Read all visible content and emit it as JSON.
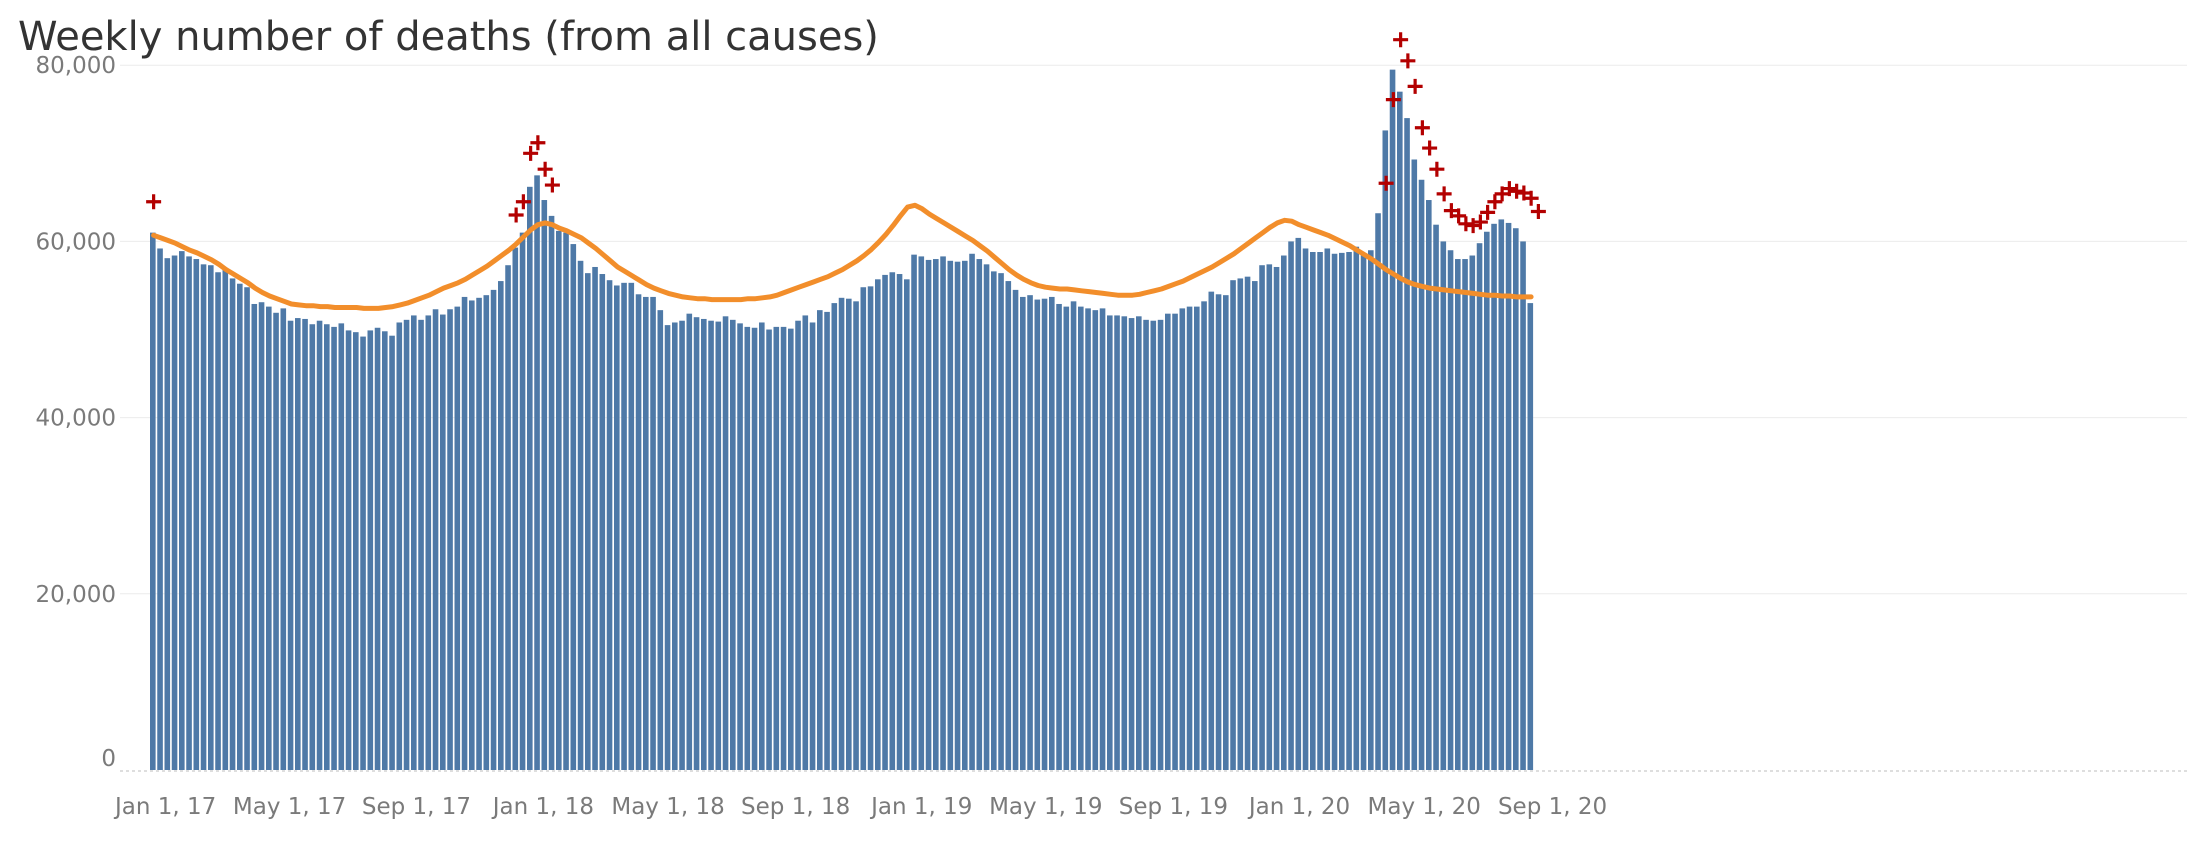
{
  "title": "Weekly number of deaths (from all causes)",
  "chart_data": {
    "type": "bar",
    "title": "Weekly number of deaths (from all causes)",
    "xlabel": "",
    "ylabel": "",
    "ylim": [
      0,
      84000
    ],
    "y_ticks": [
      0,
      20000,
      40000,
      60000,
      80000
    ],
    "y_tick_labels": [
      "0",
      "20,000",
      "40,000",
      "60,000",
      "80,000"
    ],
    "x_tick_labels": [
      "Jan 1, 17",
      "May 1, 17",
      "Sep 1, 17",
      "Jan 1, 18",
      "May 1, 18",
      "Sep 1, 18",
      "Jan 1, 19",
      "May 1, 19",
      "Sep 1, 19",
      "Jan 1, 20",
      "May 1, 20",
      "Sep 1, 20"
    ],
    "x_tick_weeks": [
      0.0,
      17.1,
      34.6,
      52.1,
      69.3,
      86.9,
      104.3,
      121.4,
      139.0,
      156.4,
      173.6,
      191.3
    ],
    "grid": true,
    "colors": {
      "bars": "#4e79a7",
      "expected_line": "#f28e2b",
      "excess_marker": "#b30000"
    },
    "series": [
      {
        "name": "",
        "type": "bar",
        "values": [
          61000,
          59200,
          58100,
          58400,
          58900,
          58300,
          58000,
          57400,
          57300,
          56500,
          57000,
          55800,
          55200,
          54800,
          52900,
          53100,
          52600,
          51900,
          52400,
          51000,
          51300,
          51200,
          50600,
          51000,
          50600,
          50300,
          50700,
          49900,
          49700,
          49200,
          49900,
          50200,
          49800,
          49300,
          50800,
          51100,
          51600,
          51100,
          51600,
          52300,
          51700,
          52300,
          52600,
          53700,
          53300,
          53600,
          53900,
          54500,
          55500,
          57300,
          59300,
          61000,
          66200,
          67500,
          64700,
          62900,
          61200,
          61000,
          59700,
          57800,
          56400,
          57100,
          56300,
          55600,
          55000,
          55300,
          55300,
          54000,
          53700,
          53700,
          52200,
          50500,
          50800,
          51000,
          51800,
          51400,
          51200,
          51000,
          50900,
          51500,
          51100,
          50700,
          50300,
          50200,
          50800,
          50000,
          50300,
          50300,
          50100,
          51000,
          51600,
          50800,
          52200,
          52000,
          53000,
          53600,
          53500,
          53200,
          54800,
          54900,
          55700,
          56200,
          56500,
          56300,
          55700,
          58500,
          58300,
          57900,
          58000,
          58300,
          57800,
          57700,
          57800,
          58600,
          58000,
          57400,
          56600,
          56400,
          55500,
          54500,
          53700,
          53900,
          53400,
          53500,
          53700,
          52900,
          52600,
          53200,
          52600,
          52400,
          52200,
          52400,
          51600,
          51600,
          51500,
          51300,
          51500,
          51100,
          51000,
          51100,
          51800,
          51800,
          52400,
          52600,
          52600,
          53200,
          54300,
          54000,
          53900,
          55600,
          55800,
          56000,
          55500,
          57300,
          57400,
          57100,
          58400,
          60000,
          60400,
          59200,
          58800,
          58800,
          59200,
          58600,
          58700,
          58800,
          59400,
          58500,
          59000,
          63200,
          72600,
          79500,
          77000,
          74000,
          69300,
          67000,
          64700,
          61900,
          60000,
          59000,
          58000,
          58000,
          58400,
          59800,
          61100,
          62000,
          62500,
          62100,
          61500,
          60000,
          53000
        ]
      },
      {
        "name": "",
        "type": "line",
        "values": [
          60700,
          60400,
          60100,
          59800,
          59400,
          59000,
          58700,
          58300,
          57900,
          57400,
          56800,
          56300,
          55800,
          55300,
          54700,
          54200,
          53800,
          53500,
          53200,
          52900,
          52800,
          52700,
          52700,
          52600,
          52600,
          52500,
          52500,
          52500,
          52500,
          52400,
          52400,
          52400,
          52500,
          52600,
          52800,
          53000,
          53300,
          53600,
          53900,
          54300,
          54700,
          55000,
          55300,
          55700,
          56200,
          56700,
          57200,
          57800,
          58400,
          59000,
          59700,
          60500,
          61300,
          61900,
          62100,
          61900,
          61500,
          61200,
          60800,
          60400,
          59800,
          59200,
          58500,
          57800,
          57100,
          56600,
          56100,
          55600,
          55100,
          54700,
          54400,
          54100,
          53900,
          53700,
          53600,
          53500,
          53500,
          53400,
          53400,
          53400,
          53400,
          53400,
          53500,
          53500,
          53600,
          53700,
          53900,
          54200,
          54500,
          54800,
          55100,
          55400,
          55700,
          56000,
          56400,
          56800,
          57300,
          57800,
          58400,
          59100,
          59900,
          60800,
          61800,
          62900,
          63900,
          64100,
          63700,
          63100,
          62600,
          62100,
          61600,
          61100,
          60600,
          60100,
          59500,
          58900,
          58200,
          57500,
          56800,
          56200,
          55700,
          55300,
          55000,
          54800,
          54700,
          54600,
          54600,
          54500,
          54400,
          54300,
          54200,
          54100,
          54000,
          53900,
          53900,
          53900,
          54000,
          54200,
          54400,
          54600,
          54900,
          55200,
          55500,
          55900,
          56300,
          56700,
          57100,
          57600,
          58100,
          58600,
          59200,
          59800,
          60400,
          61000,
          61600,
          62100,
          62400,
          62300,
          61900,
          61600,
          61300,
          61000,
          60700,
          60300,
          59900,
          59500,
          59000,
          58500,
          58000,
          57400,
          56800,
          56300,
          55800,
          55400,
          55100,
          54900,
          54700,
          54600,
          54500,
          54400,
          54300,
          54200,
          54100,
          54000,
          53900,
          53900,
          53800,
          53800,
          53700,
          53700,
          53700
        ]
      }
    ],
    "markers": {
      "symbol": "+",
      "points": [
        {
          "week": 0,
          "value": 64500
        },
        {
          "week": 50,
          "value": 63000
        },
        {
          "week": 51,
          "value": 64500
        },
        {
          "week": 52,
          "value": 70000
        },
        {
          "week": 53,
          "value": 71200
        },
        {
          "week": 54,
          "value": 68200
        },
        {
          "week": 55,
          "value": 66400
        },
        {
          "week": 170,
          "value": 66600
        },
        {
          "week": 171,
          "value": 76100
        },
        {
          "week": 172,
          "value": 82900
        },
        {
          "week": 173,
          "value": 80500
        },
        {
          "week": 174,
          "value": 77600
        },
        {
          "week": 175,
          "value": 72900
        },
        {
          "week": 176,
          "value": 70600
        },
        {
          "week": 177,
          "value": 68200
        },
        {
          "week": 178,
          "value": 65400
        },
        {
          "week": 179,
          "value": 63500
        },
        {
          "week": 180,
          "value": 62900
        },
        {
          "week": 181,
          "value": 62000
        },
        {
          "week": 182,
          "value": 61800
        },
        {
          "week": 183,
          "value": 62200
        },
        {
          "week": 184,
          "value": 63300
        },
        {
          "week": 185,
          "value": 64500
        },
        {
          "week": 186,
          "value": 65400
        },
        {
          "week": 187,
          "value": 66000
        },
        {
          "week": 188,
          "value": 65700
        },
        {
          "week": 189,
          "value": 65500
        },
        {
          "week": 190,
          "value": 64900
        },
        {
          "week": 191,
          "value": 63400
        }
      ]
    }
  }
}
